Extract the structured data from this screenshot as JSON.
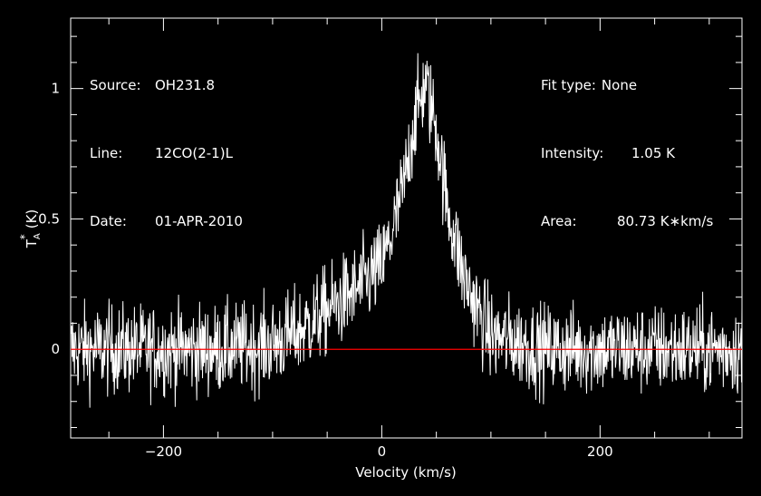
{
  "header": {
    "source_label": "Source:",
    "source_value": "OH231.8",
    "line_label": "Line:",
    "line_value": "12CO(2-1)L",
    "date_label": "Date:",
    "date_value": "01-APR-2010",
    "fit_label": "Fit type:",
    "fit_value": "None",
    "intensity_label": "Intensity:",
    "intensity_value": "1.05 K",
    "area_label": "Area:",
    "area_value": "80.73 K∗km/s"
  },
  "chart_data": {
    "type": "line",
    "xlabel": "Velocity (km/s)",
    "ylabel": "T_A^* (K)",
    "xlim": [
      -285,
      330
    ],
    "ylim": [
      -0.34,
      1.27
    ],
    "x_ticks": [
      -200,
      0,
      200
    ],
    "x_tick_labels": [
      "−200",
      "0",
      "200"
    ],
    "y_ticks": [
      0,
      0.5,
      1
    ],
    "y_tick_labels": [
      "0",
      "0.5",
      "1"
    ],
    "baseline": 0,
    "grid": false,
    "colors": {
      "background": "#000000",
      "spectrum": "#ffffff",
      "baseline": "#ff0000",
      "axes": "#ffffff"
    },
    "series": [
      {
        "values_note": "noisy spectrum; envelope approximated by the points below",
        "x": [
          -285,
          -150,
          -100,
          -75,
          -50,
          -25,
          0,
          10,
          20,
          30,
          40,
          50,
          60,
          75,
          90,
          100,
          150,
          330
        ],
        "y": [
          0,
          0,
          0.02,
          0.07,
          0.15,
          0.22,
          0.32,
          0.45,
          0.62,
          0.88,
          1.02,
          0.85,
          0.55,
          0.28,
          0.13,
          0.05,
          0,
          0
        ]
      }
    ]
  }
}
